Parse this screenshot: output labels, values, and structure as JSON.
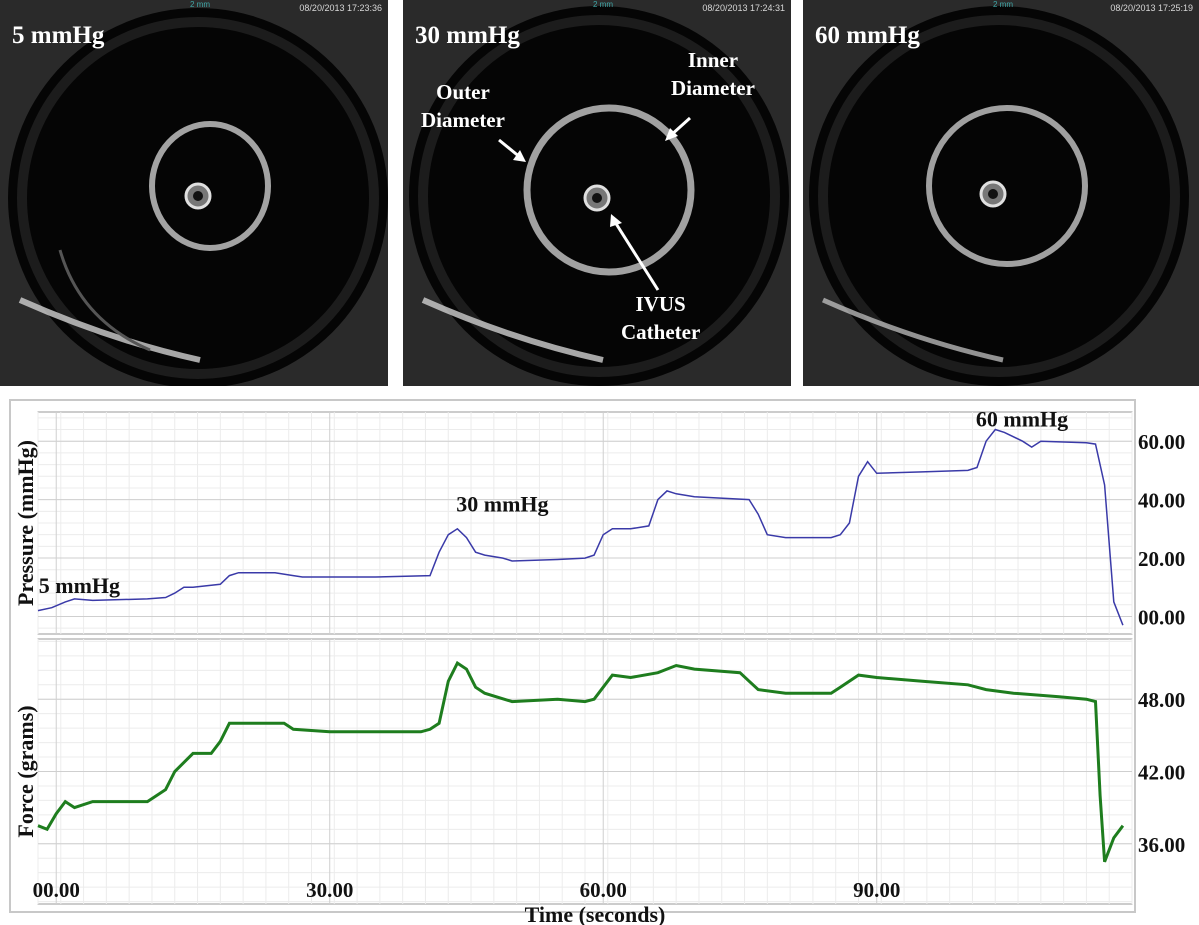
{
  "panels": [
    {
      "label": "5 mmHg",
      "timestamp": "08/20/2013 17:23:36",
      "scale": "2 mm"
    },
    {
      "label": "30 mmHg",
      "timestamp": "08/20/2013 17:24:31",
      "scale": "2 mm"
    },
    {
      "label": "60 mmHg",
      "timestamp": "08/20/2013 17:25:19",
      "scale": "2 mm"
    }
  ],
  "annotations": {
    "outer_diameter": [
      "Outer",
      "Diameter"
    ],
    "inner_diameter": [
      "Inner",
      "Diameter"
    ],
    "ivus_catheter": [
      "IVUS",
      "Catheter"
    ]
  },
  "chart_data": {
    "type": "line",
    "xlabel": "Time (seconds)",
    "xlim": [
      -2,
      118
    ],
    "xticks": [
      0,
      30,
      60,
      90
    ],
    "xtick_labels": [
      "00.00",
      "30.00",
      "60.00",
      "90.00"
    ],
    "grid": true,
    "panels": [
      {
        "ylabel": "Pressure (mmHg)",
        "ylim": [
          -6,
          70
        ],
        "yticks": [
          0,
          20,
          40,
          60
        ],
        "ytick_labels": [
          "00.00",
          "20.00",
          "40.00",
          "60.00"
        ],
        "series_color": "#3a3aa8",
        "annotations": [
          {
            "text": "5 mmHg",
            "x": 7,
            "y": 8
          },
          {
            "text": "30 mmHg",
            "x": 54,
            "y": 36
          },
          {
            "text": "60 mmHg",
            "x": 111,
            "y": 65
          }
        ],
        "x": [
          -2,
          -0.5,
          1,
          2,
          4,
          10,
          12,
          13,
          14,
          15,
          18,
          19,
          20,
          24,
          26,
          27,
          35,
          41,
          42,
          43,
          44,
          45,
          46,
          47,
          49,
          50,
          55,
          58,
          59,
          60,
          61,
          63,
          65,
          66,
          67,
          68,
          70,
          76,
          77,
          78,
          80,
          85,
          86,
          87,
          88,
          89,
          90,
          95,
          100,
          101,
          102,
          103,
          104,
          106,
          107,
          108,
          113,
          114,
          115,
          116,
          117
        ],
        "y": [
          2,
          3,
          5,
          6,
          5.5,
          6,
          6.5,
          8,
          10,
          10,
          11,
          14,
          15,
          15,
          14,
          13.5,
          13.5,
          14,
          22,
          28,
          30,
          27,
          22,
          21,
          20,
          19,
          19.5,
          20,
          21,
          28,
          30,
          30,
          31,
          40,
          43,
          42,
          41,
          40,
          35,
          28,
          27,
          27,
          28,
          32,
          48,
          53,
          49,
          49.5,
          50,
          51,
          60,
          64,
          63,
          60,
          58,
          60,
          59.5,
          59,
          45,
          5,
          -3
        ]
      },
      {
        "ylabel": "Force (grams)",
        "ylim": [
          31,
          53
        ],
        "yticks": [
          36,
          42,
          48
        ],
        "ytick_labels": [
          "36.00",
          "42.00",
          "48.00"
        ],
        "series_color": "#1e7d1e",
        "x": [
          -2,
          -1,
          0,
          1,
          2,
          4,
          10,
          11,
          12,
          13,
          15,
          16,
          17,
          18,
          19,
          20,
          25,
          26,
          30,
          40,
          41,
          42,
          43,
          44,
          45,
          46,
          47,
          50,
          55,
          58,
          59,
          60,
          61,
          63,
          66,
          68,
          70,
          75,
          76,
          77,
          80,
          85,
          86,
          88,
          90,
          95,
          100,
          102,
          105,
          110,
          113,
          114,
          114.5,
          115,
          116,
          117
        ],
        "y": [
          37.5,
          37.2,
          38.5,
          39.5,
          39,
          39.5,
          39.5,
          40,
          40.5,
          42,
          43.5,
          43.5,
          43.5,
          44.5,
          46,
          46,
          46,
          45.5,
          45.3,
          45.3,
          45.5,
          46,
          49.5,
          51,
          50.5,
          49,
          48.5,
          47.8,
          48,
          47.8,
          48,
          49,
          50,
          49.8,
          50.2,
          50.8,
          50.5,
          50.2,
          49.5,
          48.8,
          48.5,
          48.5,
          49,
          50,
          49.8,
          49.5,
          49.2,
          48.8,
          48.5,
          48.2,
          48,
          47.8,
          40,
          34.5,
          36.5,
          37.5
        ]
      }
    ]
  }
}
